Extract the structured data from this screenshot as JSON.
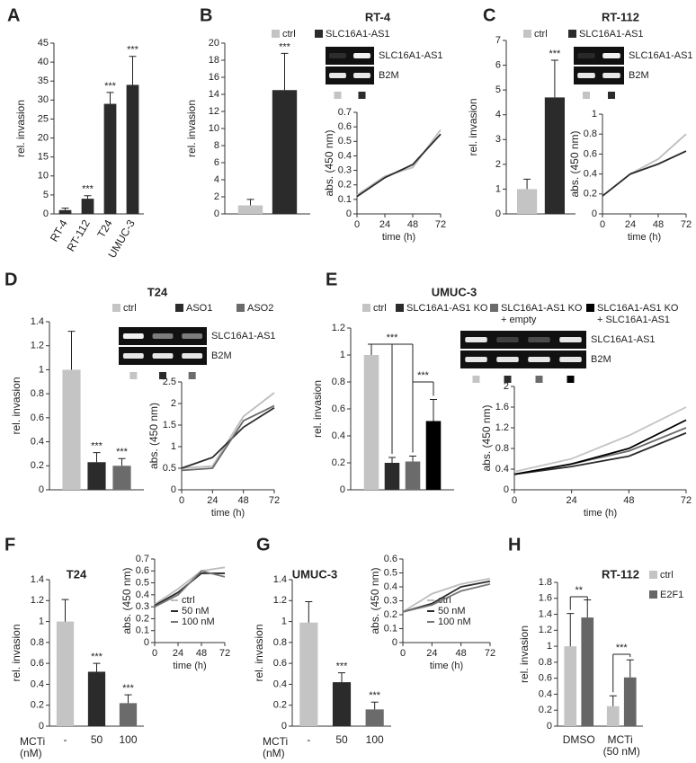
{
  "chart_data": [
    {
      "type": "bar",
      "panel": "A",
      "ylabel": "rel. invasion",
      "categories": [
        "RT-4",
        "RT-112",
        "T24",
        "UMUC-3"
      ],
      "series": [
        {
          "color": "#2b2b2b",
          "values": [
            1,
            4,
            29,
            34
          ],
          "errors": [
            0.5,
            0.8,
            3,
            7.5
          ],
          "annotations": [
            null,
            "***",
            "***",
            "***"
          ]
        }
      ],
      "ylim": [
        0,
        45
      ],
      "yticks": [
        0,
        5,
        10,
        15,
        20,
        25,
        30,
        35,
        40,
        45
      ]
    },
    {
      "type": "bar",
      "panel": "B",
      "title": "RT-4",
      "ylabel": "rel. invasion",
      "categories": [
        null
      ],
      "series": [
        {
          "name": "ctrl",
          "color": "#c4c4c4",
          "values": [
            1
          ],
          "errors": [
            0.7
          ],
          "annotations": [
            null
          ]
        },
        {
          "name": "SLC16A1-AS1",
          "color": "#2b2b2b",
          "values": [
            14.5
          ],
          "errors": [
            4.3
          ],
          "annotations": [
            "***"
          ]
        }
      ],
      "ylim": [
        0,
        20
      ],
      "yticks": [
        0,
        2,
        4,
        6,
        8,
        10,
        12,
        14,
        16,
        18,
        20
      ],
      "gel_labels": [
        "SLC16A1-AS1",
        "B2M"
      ]
    },
    {
      "type": "line",
      "xlabel": "time (h)",
      "ylabel": "abs. (450 nm)",
      "x": [
        0,
        24,
        48,
        72
      ],
      "xlim": [
        0,
        72
      ],
      "xticks": [
        0,
        24,
        48,
        72
      ],
      "series": [
        {
          "color": "#bdbdbd",
          "values": [
            0.13,
            0.26,
            0.32,
            0.58
          ]
        },
        {
          "color": "#2b2b2b",
          "values": [
            0.12,
            0.25,
            0.34,
            0.55
          ]
        }
      ],
      "ylim": [
        0,
        0.7
      ],
      "yticks": [
        0,
        0.1,
        0.2,
        0.3,
        0.4,
        0.5,
        0.6,
        0.7
      ]
    },
    {
      "type": "bar",
      "panel": "C",
      "title": "RT-112",
      "ylabel": "rel. invasion",
      "categories": [
        null
      ],
      "series": [
        {
          "name": "ctrl",
          "color": "#c4c4c4",
          "values": [
            1
          ],
          "errors": [
            0.4
          ],
          "annotations": [
            null
          ]
        },
        {
          "name": "SLC16A1-AS1",
          "color": "#2b2b2b",
          "values": [
            4.7
          ],
          "errors": [
            1.5
          ],
          "annotations": [
            "***"
          ]
        }
      ],
      "ylim": [
        0,
        7
      ],
      "yticks": [
        0,
        1,
        2,
        3,
        4,
        5,
        6,
        7
      ],
      "gel_labels": [
        "SLC16A1-AS1",
        "B2M"
      ]
    },
    {
      "type": "line",
      "xlabel": "time (h)",
      "ylabel": "abs. (450 nm)",
      "x": [
        0,
        24,
        48,
        72
      ],
      "xlim": [
        0,
        72
      ],
      "xticks": [
        0,
        24,
        48,
        72
      ],
      "series": [
        {
          "color": "#bdbdbd",
          "values": [
            0.18,
            0.4,
            0.55,
            0.8
          ]
        },
        {
          "color": "#2b2b2b",
          "values": [
            0.18,
            0.4,
            0.5,
            0.63
          ]
        }
      ],
      "ylim": [
        0,
        1
      ],
      "yticks": [
        0,
        0.2,
        0.4,
        0.6,
        0.8,
        1
      ]
    },
    {
      "type": "bar",
      "panel": "D",
      "title": "T24",
      "ylabel": "rel. invasion",
      "categories": [
        null
      ],
      "series": [
        {
          "name": "ctrl",
          "color": "#c4c4c4",
          "values": [
            1
          ],
          "errors": [
            0.32
          ],
          "annotations": [
            null
          ]
        },
        {
          "name": "ASO1",
          "color": "#2b2b2b",
          "values": [
            0.23
          ],
          "errors": [
            0.08
          ],
          "annotations": [
            "***"
          ]
        },
        {
          "name": "ASO2",
          "color": "#6b6b6b",
          "values": [
            0.2
          ],
          "errors": [
            0.06
          ],
          "annotations": [
            "***"
          ]
        }
      ],
      "ylim": [
        0,
        1.4
      ],
      "yticks": [
        0,
        0.2,
        0.4,
        0.6,
        0.8,
        1,
        1.2,
        1.4
      ],
      "gel_labels": [
        "SLC16A1-AS1",
        "B2M"
      ]
    },
    {
      "type": "line",
      "xlabel": "time (h)",
      "ylabel": "abs. (450 nm)",
      "x": [
        0,
        24,
        48,
        72
      ],
      "xlim": [
        0,
        72
      ],
      "xticks": [
        0,
        24,
        48,
        72
      ],
      "series": [
        {
          "color": "#bdbdbd",
          "values": [
            0.5,
            0.55,
            1.7,
            2.25
          ]
        },
        {
          "color": "#2b2b2b",
          "values": [
            0.5,
            0.75,
            1.45,
            1.9
          ]
        },
        {
          "color": "#6b6b6b",
          "values": [
            0.45,
            0.5,
            1.6,
            1.95
          ]
        }
      ],
      "ylim": [
        0,
        2.5
      ],
      "yticks": [
        0,
        0.5,
        1,
        1.5,
        2,
        2.5
      ]
    },
    {
      "type": "bar",
      "panel": "E",
      "title": "UMUC-3",
      "ylabel": "rel. invasion",
      "categories": [
        null
      ],
      "series": [
        {
          "name": "ctrl",
          "color": "#c4c4c4",
          "values": [
            1
          ],
          "errors": [
            0.08
          ],
          "annotations": [
            null
          ]
        },
        {
          "name": "SLC16A1-AS1 KO",
          "color": "#2b2b2b",
          "values": [
            0.2
          ],
          "errors": [
            0.04
          ],
          "annotations": [
            null
          ]
        },
        {
          "name": "SLC16A1-AS1 KO + empty",
          "color": "#6b6b6b",
          "values": [
            0.21
          ],
          "errors": [
            0.04
          ],
          "annotations": [
            null
          ]
        },
        {
          "name": "SLC16A1-AS1 KO + SLC16A1-AS1",
          "color": "#000000",
          "values": [
            0.51
          ],
          "errors": [
            0.16
          ],
          "annotations": [
            null
          ]
        }
      ],
      "brackets": [
        "***",
        "***"
      ],
      "ylim": [
        0,
        1.2
      ],
      "yticks": [
        0,
        0.2,
        0.4,
        0.6,
        0.8,
        1,
        1.2
      ],
      "gel_labels": [
        "SLC16A1-AS1",
        "B2M"
      ]
    },
    {
      "type": "line",
      "xlabel": "time (h)",
      "ylabel": "abs. (450 nm)",
      "x": [
        0,
        24,
        48,
        72
      ],
      "xlim": [
        0,
        72
      ],
      "xticks": [
        0,
        24,
        48,
        72
      ],
      "series": [
        {
          "color": "#c4c4c4",
          "values": [
            0.35,
            0.6,
            1.05,
            1.6
          ]
        },
        {
          "color": "#2b2b2b",
          "values": [
            0.3,
            0.45,
            0.65,
            1.1
          ]
        },
        {
          "color": "#6b6b6b",
          "values": [
            0.3,
            0.5,
            0.75,
            1.2
          ]
        },
        {
          "color": "#000000",
          "values": [
            0.3,
            0.5,
            0.8,
            1.35
          ]
        }
      ],
      "ylim": [
        0,
        2
      ],
      "yticks": [
        0,
        0.4,
        0.8,
        1.2,
        1.6,
        2
      ]
    },
    {
      "type": "bar",
      "panel": "F",
      "title": "T24",
      "ylabel": "rel. invasion",
      "xlabel": "MCTi (nM)",
      "categories": [
        "-",
        "50",
        "100"
      ],
      "series": [
        {
          "colors": [
            "#c4c4c4",
            "#2b2b2b",
            "#6b6b6b"
          ],
          "values": [
            1,
            0.52,
            0.22
          ],
          "errors": [
            0.21,
            0.08,
            0.08
          ],
          "annotations": [
            null,
            "***",
            "***"
          ]
        }
      ],
      "ylim": [
        0,
        1.4
      ],
      "yticks": [
        0,
        0.2,
        0.4,
        0.6,
        0.8,
        1,
        1.2,
        1.4
      ]
    },
    {
      "type": "line",
      "xlabel": "time (h)",
      "ylabel": "abs. (450 nm)",
      "x": [
        0,
        24,
        48,
        72
      ],
      "xlim": [
        0,
        72
      ],
      "xticks": [
        0,
        24,
        48,
        72
      ],
      "series": [
        {
          "name": "ctrl",
          "color": "#bdbdbd",
          "values": [
            0.32,
            0.45,
            0.6,
            0.63
          ]
        },
        {
          "name": "50 nM",
          "color": "#2b2b2b",
          "values": [
            0.31,
            0.42,
            0.58,
            0.58
          ]
        },
        {
          "name": "100 nM",
          "color": "#777777",
          "values": [
            0.3,
            0.4,
            0.6,
            0.55
          ]
        }
      ],
      "ylim": [
        0,
        0.7
      ],
      "yticks": [
        0,
        0.1,
        0.2,
        0.3,
        0.4,
        0.5,
        0.6,
        0.7
      ]
    },
    {
      "type": "bar",
      "panel": "G",
      "title": "UMUC-3",
      "ylabel": "rel. invasion",
      "xlabel": "MCTi (nM)",
      "categories": [
        "-",
        "50",
        "100"
      ],
      "series": [
        {
          "colors": [
            "#c4c4c4",
            "#2b2b2b",
            "#6b6b6b"
          ],
          "values": [
            0.99,
            0.42,
            0.16
          ],
          "errors": [
            0.2,
            0.09,
            0.07
          ],
          "annotations": [
            null,
            "***",
            "***"
          ]
        }
      ],
      "ylim": [
        0,
        1.4
      ],
      "yticks": [
        0,
        0.2,
        0.4,
        0.6,
        0.8,
        1,
        1.2,
        1.4
      ]
    },
    {
      "type": "line",
      "xlabel": "time (h)",
      "ylabel": "abs. (450 nm)",
      "x": [
        0,
        24,
        48,
        72
      ],
      "xlim": [
        0,
        72
      ],
      "xticks": [
        0,
        24,
        48,
        72
      ],
      "series": [
        {
          "name": "ctrl",
          "color": "#bdbdbd",
          "values": [
            0.22,
            0.35,
            0.42,
            0.46
          ]
        },
        {
          "name": "50 nM",
          "color": "#2b2b2b",
          "values": [
            0.22,
            0.28,
            0.4,
            0.44
          ]
        },
        {
          "name": "100 nM",
          "color": "#777777",
          "values": [
            0.22,
            0.27,
            0.37,
            0.42
          ]
        }
      ],
      "ylim": [
        0,
        0.6
      ],
      "yticks": [
        0,
        0.1,
        0.2,
        0.3,
        0.4,
        0.5,
        0.6
      ]
    },
    {
      "type": "bar",
      "panel": "H",
      "title": "RT-112",
      "ylabel": "rel. invasion",
      "categories": [
        "DMSO",
        "MCTi (50 nM)"
      ],
      "series": [
        {
          "name": "ctrl",
          "color": "#c4c4c4",
          "values": [
            1,
            0.25
          ],
          "errors": [
            0.41,
            0.13
          ],
          "annotations": [
            null,
            null
          ]
        },
        {
          "name": "E2F1",
          "color": "#666666",
          "values": [
            1.36,
            0.61
          ],
          "errors": [
            0.22,
            0.22
          ],
          "annotations": [
            null,
            null
          ]
        }
      ],
      "brackets": [
        "**",
        "***"
      ],
      "ylim": [
        0,
        1.8
      ],
      "yticks": [
        0,
        0.2,
        0.4,
        0.6,
        0.8,
        1,
        1.2,
        1.4,
        1.6,
        1.8
      ]
    }
  ]
}
